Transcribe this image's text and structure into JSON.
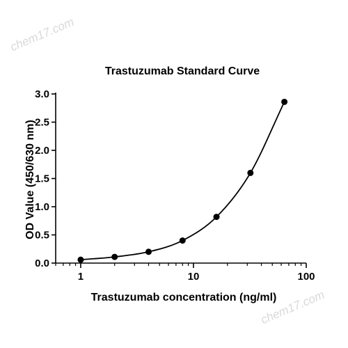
{
  "watermark": "chem17.com",
  "chart_data": {
    "type": "scatter",
    "title": "Trastuzumab Standard Curve",
    "xlabel": "Trastuzumab concentration (ng/ml)",
    "ylabel": "OD Value (450/630 nm)",
    "xscale": "log",
    "xlim": [
      0.6,
      100
    ],
    "ylim": [
      0,
      3.0
    ],
    "x_ticks": [
      1,
      10,
      100
    ],
    "x_tick_labels": [
      "1",
      "10",
      "100"
    ],
    "y_ticks": [
      0,
      0.5,
      1.0,
      1.5,
      2.0,
      2.5,
      3.0
    ],
    "y_tick_labels": [
      "0.0",
      "0.5",
      "1.0",
      "1.5",
      "2.0",
      "2.5",
      "3.0"
    ],
    "grid": false,
    "fit_curve": true,
    "series": [
      {
        "x": [
          1,
          2,
          4,
          8,
          16,
          32,
          64
        ],
        "y": [
          0.06,
          0.11,
          0.2,
          0.4,
          0.82,
          1.6,
          2.86
        ]
      }
    ]
  }
}
